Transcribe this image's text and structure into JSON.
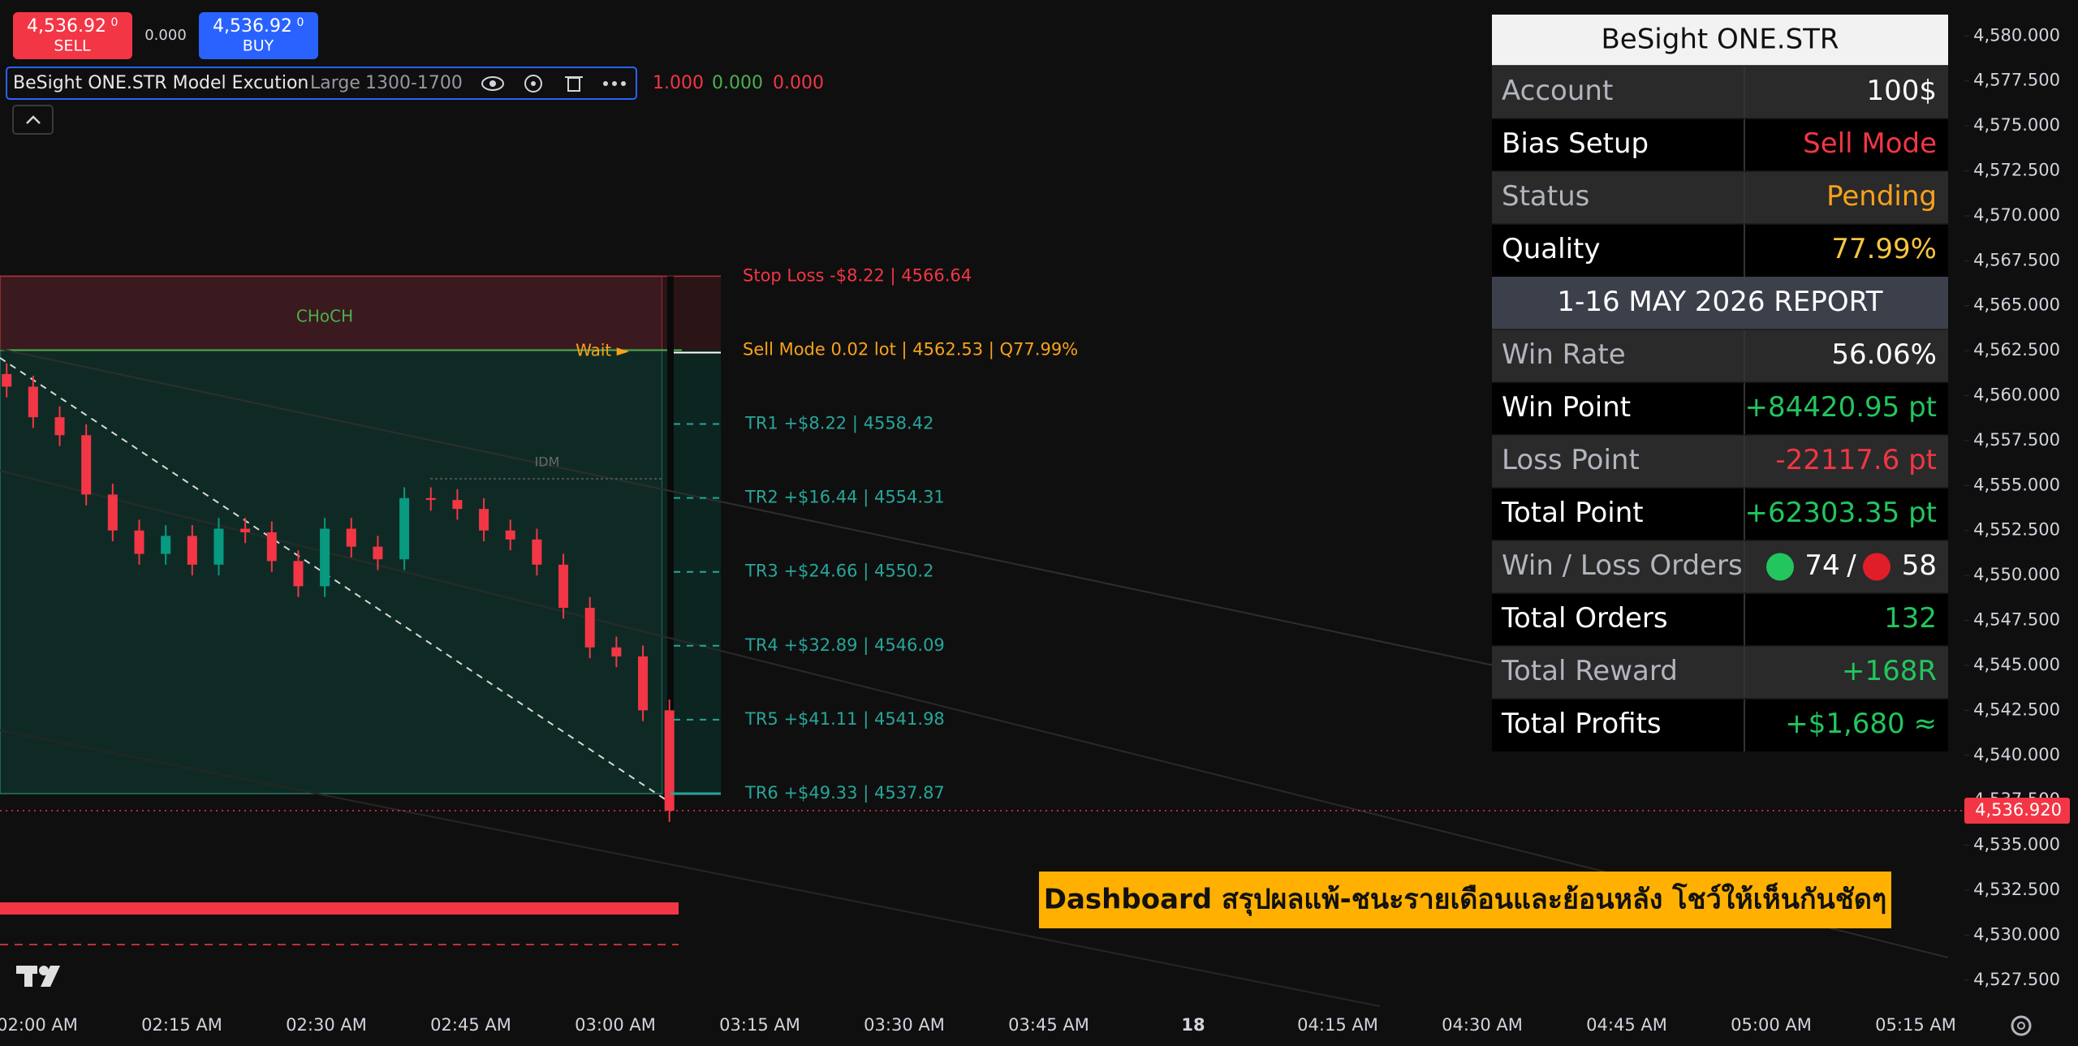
{
  "toolbar": {
    "sell": {
      "price": "4,536.92",
      "fraction": "0",
      "label": "SELL"
    },
    "spread": "0.000",
    "buy": {
      "price": "4,536.92",
      "fraction": "0",
      "label": "BUY"
    }
  },
  "indicator": {
    "name": "BeSight ONE.STR Model Excution",
    "size": "Large",
    "range": "1300-1700",
    "outputs": [
      "1.000",
      "0.000",
      "0.000"
    ]
  },
  "chart": {
    "ylim": [
      4526,
      4582
    ],
    "yticks": [
      {
        "value": 4580,
        "label": "4,580.000"
      },
      {
        "value": 4577.5,
        "label": "4,577.500"
      },
      {
        "value": 4575,
        "label": "4,575.000"
      },
      {
        "value": 4572.5,
        "label": "4,572.500"
      },
      {
        "value": 4570,
        "label": "4,570.000"
      },
      {
        "value": 4567.5,
        "label": "4,567.500"
      },
      {
        "value": 4565,
        "label": "4,565.000"
      },
      {
        "value": 4562.5,
        "label": "4,562.500"
      },
      {
        "value": 4560,
        "label": "4,560.000"
      },
      {
        "value": 4557.5,
        "label": "4,557.500"
      },
      {
        "value": 4555,
        "label": "4,555.000"
      },
      {
        "value": 4552.5,
        "label": "4,552.500"
      },
      {
        "value": 4550,
        "label": "4,550.000"
      },
      {
        "value": 4547.5,
        "label": "4,547.500"
      },
      {
        "value": 4545,
        "label": "4,545.000"
      },
      {
        "value": 4542.5,
        "label": "4,542.500"
      },
      {
        "value": 4540,
        "label": "4,540.000"
      },
      {
        "value": 4537.5,
        "label": "4,537.500"
      },
      {
        "value": 4535,
        "label": "4,535.000"
      },
      {
        "value": 4532.5,
        "label": "4,532.500"
      },
      {
        "value": 4530,
        "label": "4,530.000"
      },
      {
        "value": 4527.5,
        "label": "4,527.500"
      }
    ],
    "time_labels": [
      "02:00 AM",
      "02:15 AM",
      "02:30 AM",
      "02:45 AM",
      "03:00 AM",
      "03:15 AM",
      "03:30 AM",
      "03:45 AM",
      "18",
      "04:15 AM",
      "04:30 AM",
      "04:45 AM",
      "05:00 AM",
      "05:15 AM"
    ],
    "candles": {
      "open": [
        4561.2,
        4560.5,
        4558.8,
        4557.8,
        4554.5,
        4552.5,
        4551.2,
        4552.2,
        4550.6,
        4552.6,
        4552.4,
        4550.8,
        4549.4,
        4552.6,
        4551.6,
        4550.9,
        4554.3,
        4554.2,
        4553.7,
        4552.5,
        4552.0,
        4550.6,
        4548.2,
        4546.0,
        4545.5,
        4542.5
      ],
      "high": [
        4561.8,
        4561.1,
        4559.4,
        4558.4,
        4555.1,
        4553.1,
        4552.8,
        4552.8,
        4553.2,
        4553.2,
        4553.0,
        4551.4,
        4553.2,
        4553.2,
        4552.2,
        4554.9,
        4554.9,
        4554.8,
        4554.3,
        4553.1,
        4552.6,
        4551.2,
        4548.8,
        4546.6,
        4546.1,
        4543.1
      ],
      "low": [
        4559.9,
        4558.2,
        4557.2,
        4553.9,
        4551.9,
        4550.6,
        4550.6,
        4550.0,
        4550.0,
        4551.8,
        4550.2,
        4548.8,
        4548.8,
        4551.0,
        4550.3,
        4550.3,
        4553.6,
        4553.1,
        4551.9,
        4551.4,
        4550.0,
        4547.6,
        4545.4,
        4544.9,
        4541.9,
        4536.3
      ],
      "close": [
        4560.5,
        4558.8,
        4557.8,
        4554.5,
        4552.5,
        4551.2,
        4552.2,
        4550.6,
        4552.6,
        4552.4,
        4550.8,
        4549.4,
        4552.6,
        4551.6,
        4550.9,
        4554.3,
        4554.2,
        4553.7,
        4552.5,
        4552.0,
        4550.6,
        4548.2,
        4546.0,
        4545.5,
        4542.5,
        4536.92
      ],
      "up_color": "#089981",
      "down_color": "#f23645"
    },
    "current_price": {
      "value": 4536.92,
      "label": "4,536.920"
    },
    "levels": [
      {
        "label": "Stop Loss -$8.22 | 4566.64",
        "price": 4566.64,
        "color": "#f23645"
      },
      {
        "label": "Sell Mode 0.02 lot | 4562.53 | Q77.99%",
        "price": 4562.53,
        "color": "#f7a21b"
      },
      {
        "label": "TR1 +$8.22 | 4558.42",
        "price": 4558.42,
        "color": "#26a69a"
      },
      {
        "label": "TR2 +$16.44 | 4554.31",
        "price": 4554.31,
        "color": "#26a69a"
      },
      {
        "label": "TR3 +$24.66 | 4550.2",
        "price": 4550.2,
        "color": "#26a69a"
      },
      {
        "label": "TR4 +$32.89 | 4546.09",
        "price": 4546.09,
        "color": "#26a69a"
      },
      {
        "label": "TR5 +$41.11 | 4541.98",
        "price": 4541.98,
        "color": "#26a69a"
      },
      {
        "label": "TR6 +$49.33 | 4537.87",
        "price": 4537.87,
        "color": "#26a69a"
      }
    ],
    "annotations": {
      "choch": "CHoCH",
      "wait": "Wait ►",
      "idm": "IDM"
    }
  },
  "dashboard": {
    "title": "BeSight ONE.STR",
    "rows": [
      {
        "label": "Account",
        "value": "100$",
        "color": "#ffffff"
      },
      {
        "label": "Bias Setup",
        "value": "Sell Mode",
        "color": "#f23645"
      },
      {
        "label": "Status",
        "value": "Pending",
        "color": "#f7a21b"
      },
      {
        "label": "Quality",
        "value": "77.99%",
        "color": "#f5c542"
      },
      {
        "section": "1-16 MAY 2026 REPORT"
      },
      {
        "label": "Win Rate",
        "value": "56.06%",
        "color": "#ffffff"
      },
      {
        "label": "Win Point",
        "value": "+84420.95 pt",
        "color": "#22c55e"
      },
      {
        "label": "Loss Point",
        "value": "-22117.6 pt",
        "color": "#f23645"
      },
      {
        "label": "Total Point",
        "value": "+62303.35 pt",
        "color": "#22c55e"
      },
      {
        "label": "Win / Loss Orders",
        "wins": "74",
        "separator": "/",
        "losses": "58",
        "color": "#ffffff"
      },
      {
        "label": "Total Orders",
        "value": "132",
        "color": "#22c55e"
      },
      {
        "label": "Total Reward",
        "value": "+168R",
        "color": "#22c55e"
      },
      {
        "label": "Total Profits",
        "value": "+$1,680 ≈",
        "color": "#22c55e"
      }
    ]
  },
  "banner": "Dashboard สรุปผลแพ้-ชนะรายเดือนและย้อนหลัง โชว์ให้เห็นกันชัดๆ"
}
